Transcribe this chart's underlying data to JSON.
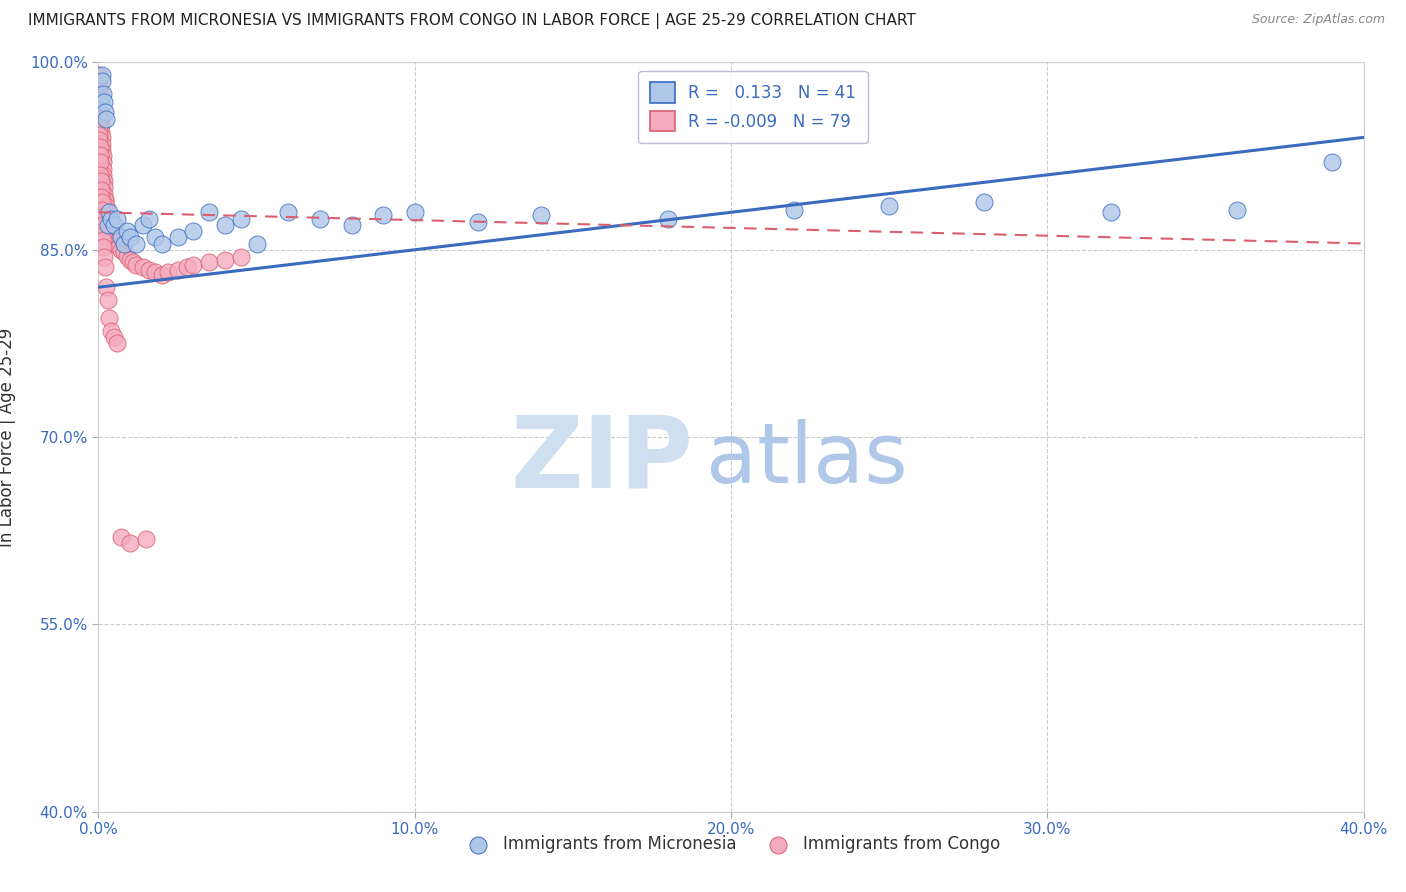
{
  "title": "IMMIGRANTS FROM MICRONESIA VS IMMIGRANTS FROM CONGO IN LABOR FORCE | AGE 25-29 CORRELATION CHART",
  "source": "Source: ZipAtlas.com",
  "ylabel": "In Labor Force | Age 25-29",
  "xlim": [
    0.0,
    0.4
  ],
  "ylim": [
    0.4,
    1.0
  ],
  "yticks": [
    0.4,
    0.55,
    0.7,
    0.85,
    1.0
  ],
  "ytick_labels": [
    "40.0%",
    "55.0%",
    "70.0%",
    "85.0%",
    "100.0%"
  ],
  "xticks": [
    0.0,
    0.1,
    0.2,
    0.3,
    0.4
  ],
  "xtick_labels": [
    "0.0%",
    "10.0%",
    "20.0%",
    "30.0%",
    "40.0%"
  ],
  "micronesia_R": 0.133,
  "micronesia_N": 41,
  "congo_R": -0.009,
  "congo_N": 79,
  "micronesia_color": "#aec6e8",
  "congo_color": "#f4abbe",
  "trendline_micronesia_color": "#3a6bbf",
  "trendline_congo_color": "#d95f6e",
  "watermark_zip": "ZIP",
  "watermark_atlas": "atlas",
  "watermark_color_zip": "#cfdff0",
  "watermark_color_atlas": "#b0c8e8",
  "micronesia_x": [
    0.0008,
    0.001,
    0.0012,
    0.0015,
    0.0018,
    0.002,
    0.0025,
    0.003,
    0.0035,
    0.004,
    0.005,
    0.006,
    0.007,
    0.008,
    0.009,
    0.01,
    0.012,
    0.014,
    0.016,
    0.018,
    0.02,
    0.025,
    0.03,
    0.035,
    0.04,
    0.045,
    0.05,
    0.06,
    0.07,
    0.08,
    0.09,
    0.1,
    0.12,
    0.14,
    0.18,
    0.22,
    0.25,
    0.28,
    0.32,
    0.36,
    0.39
  ],
  "micronesia_y": [
    0.97,
    0.99,
    0.985,
    0.975,
    0.968,
    0.96,
    0.955,
    0.87,
    0.88,
    0.875,
    0.87,
    0.875,
    0.86,
    0.855,
    0.865,
    0.86,
    0.855,
    0.87,
    0.875,
    0.86,
    0.855,
    0.86,
    0.865,
    0.88,
    0.87,
    0.875,
    0.855,
    0.88,
    0.875,
    0.87,
    0.878,
    0.88,
    0.872,
    0.878,
    0.875,
    0.882,
    0.885,
    0.888,
    0.88,
    0.882,
    0.92
  ],
  "congo_x": [
    0.0002,
    0.00025,
    0.0003,
    0.00035,
    0.0004,
    0.0005,
    0.0006,
    0.0007,
    0.0008,
    0.0009,
    0.001,
    0.0011,
    0.0012,
    0.0013,
    0.0014,
    0.0015,
    0.0016,
    0.0017,
    0.0018,
    0.0019,
    0.002,
    0.0022,
    0.0024,
    0.0026,
    0.0028,
    0.003,
    0.0035,
    0.004,
    0.0045,
    0.005,
    0.0055,
    0.006,
    0.0065,
    0.007,
    0.008,
    0.009,
    0.01,
    0.011,
    0.012,
    0.014,
    0.016,
    0.018,
    0.02,
    0.022,
    0.025,
    0.028,
    0.03,
    0.035,
    0.04,
    0.045,
    0.00015,
    0.0002,
    0.00025,
    0.0003,
    0.00035,
    0.0004,
    0.0005,
    0.0006,
    0.0007,
    0.0008,
    0.0009,
    0.001,
    0.0011,
    0.0012,
    0.0013,
    0.0014,
    0.0015,
    0.0016,
    0.0018,
    0.002,
    0.0025,
    0.003,
    0.0035,
    0.004,
    0.005,
    0.006,
    0.007,
    0.01,
    0.015
  ],
  "congo_y": [
    0.99,
    0.985,
    0.98,
    0.975,
    0.97,
    0.965,
    0.96,
    0.955,
    0.95,
    0.945,
    0.94,
    0.935,
    0.93,
    0.925,
    0.92,
    0.915,
    0.91,
    0.905,
    0.9,
    0.895,
    0.89,
    0.89,
    0.885,
    0.88,
    0.88,
    0.875,
    0.87,
    0.865,
    0.86,
    0.858,
    0.856,
    0.854,
    0.852,
    0.85,
    0.848,
    0.845,
    0.842,
    0.84,
    0.838,
    0.836,
    0.834,
    0.832,
    0.83,
    0.832,
    0.834,
    0.836,
    0.838,
    0.84,
    0.842,
    0.844,
    0.955,
    0.948,
    0.942,
    0.938,
    0.932,
    0.926,
    0.92,
    0.91,
    0.905,
    0.898,
    0.892,
    0.888,
    0.882,
    0.876,
    0.87,
    0.862,
    0.858,
    0.852,
    0.844,
    0.836,
    0.82,
    0.81,
    0.795,
    0.785,
    0.78,
    0.775,
    0.62,
    0.615,
    0.618
  ],
  "micronesia_trendline_x": [
    0.0,
    0.4
  ],
  "micronesia_trendline_y": [
    0.82,
    0.94
  ],
  "congo_trendline_x": [
    0.0,
    0.4
  ],
  "congo_trendline_y": [
    0.88,
    0.855
  ]
}
